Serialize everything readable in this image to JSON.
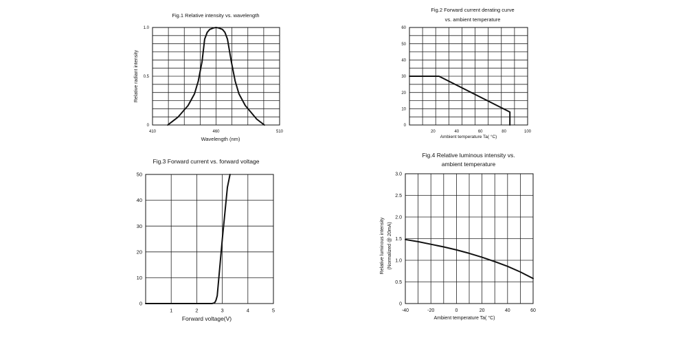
{
  "chart_data": [
    {
      "type": "line",
      "title": "Fig.1 Relative intensity vs. wavelength",
      "xlabel": "Wavelength (nm)",
      "ylabel": "Relative radiant intensity",
      "xlim": [
        410,
        510
      ],
      "ylim": [
        0,
        1.0
      ],
      "x_ticks": [
        "410",
        "460",
        "510"
      ],
      "y_ticks": [
        "0",
        "0.5",
        "1.0"
      ],
      "grid": true,
      "series": [
        {
          "x": [
            422,
            430,
            438,
            443,
            446,
            449,
            451,
            453,
            455,
            458,
            460,
            462,
            465,
            467,
            469,
            472,
            475,
            478,
            483,
            492,
            498
          ],
          "y": [
            0,
            0.08,
            0.2,
            0.32,
            0.45,
            0.65,
            0.88,
            0.95,
            0.98,
            0.995,
            1.0,
            0.995,
            0.98,
            0.95,
            0.88,
            0.65,
            0.45,
            0.32,
            0.2,
            0.06,
            0
          ]
        }
      ]
    },
    {
      "type": "line",
      "title": "Fig.2  Forward current derating curve",
      "subtitle": "vs. ambient temperature",
      "xlabel": "Ambient temperature Ta( °C)",
      "ylabel": "",
      "xlim": [
        0,
        100
      ],
      "ylim": [
        0,
        60
      ],
      "x_ticks": [
        "20",
        "40",
        "60",
        "80",
        "100"
      ],
      "y_ticks": [
        "0",
        "10",
        "20",
        "30",
        "40",
        "50",
        "60"
      ],
      "grid": true,
      "series": [
        {
          "x": [
            0,
            25,
            85,
            85
          ],
          "y": [
            30,
            30,
            8,
            0
          ]
        }
      ]
    },
    {
      "type": "line",
      "title": "Fig.3 Forward current vs. forward voltage",
      "xlabel": "Forward voltage(V)",
      "ylabel": "",
      "xlim": [
        0,
        5
      ],
      "ylim": [
        0,
        50
      ],
      "x_ticks": [
        "1",
        "2",
        "3",
        "4",
        "5"
      ],
      "y_ticks": [
        "0",
        "10",
        "20",
        "30",
        "40",
        "50"
      ],
      "grid": true,
      "series": [
        {
          "x": [
            0,
            2.6,
            2.7,
            2.75,
            2.8,
            3.0,
            3.2,
            3.3
          ],
          "y": [
            0,
            0,
            0.3,
            1.2,
            3,
            25,
            45,
            50
          ]
        }
      ]
    },
    {
      "type": "line",
      "title": "Fig.4 Relative luminous intensity vs.",
      "subtitle": "ambient temperature",
      "xlabel": "Ambient temperature Ta( °C)",
      "ylabel": "Relative luminous intensity",
      "ylabel2": "(Normalized @ 20mA)",
      "xlim": [
        -40,
        60
      ],
      "ylim": [
        0,
        3.0
      ],
      "x_ticks": [
        "-40",
        "-20",
        "0",
        "20",
        "40",
        "60"
      ],
      "y_ticks": [
        "0",
        "0.5",
        "1.0",
        "1.5",
        "2.0",
        "2.5",
        "3.0"
      ],
      "grid": true,
      "series": [
        {
          "x": [
            -40,
            -30,
            -20,
            -10,
            0,
            10,
            20,
            30,
            40,
            50,
            60
          ],
          "y": [
            1.48,
            1.43,
            1.37,
            1.31,
            1.24,
            1.16,
            1.07,
            0.97,
            0.86,
            0.73,
            0.58
          ]
        }
      ]
    }
  ]
}
